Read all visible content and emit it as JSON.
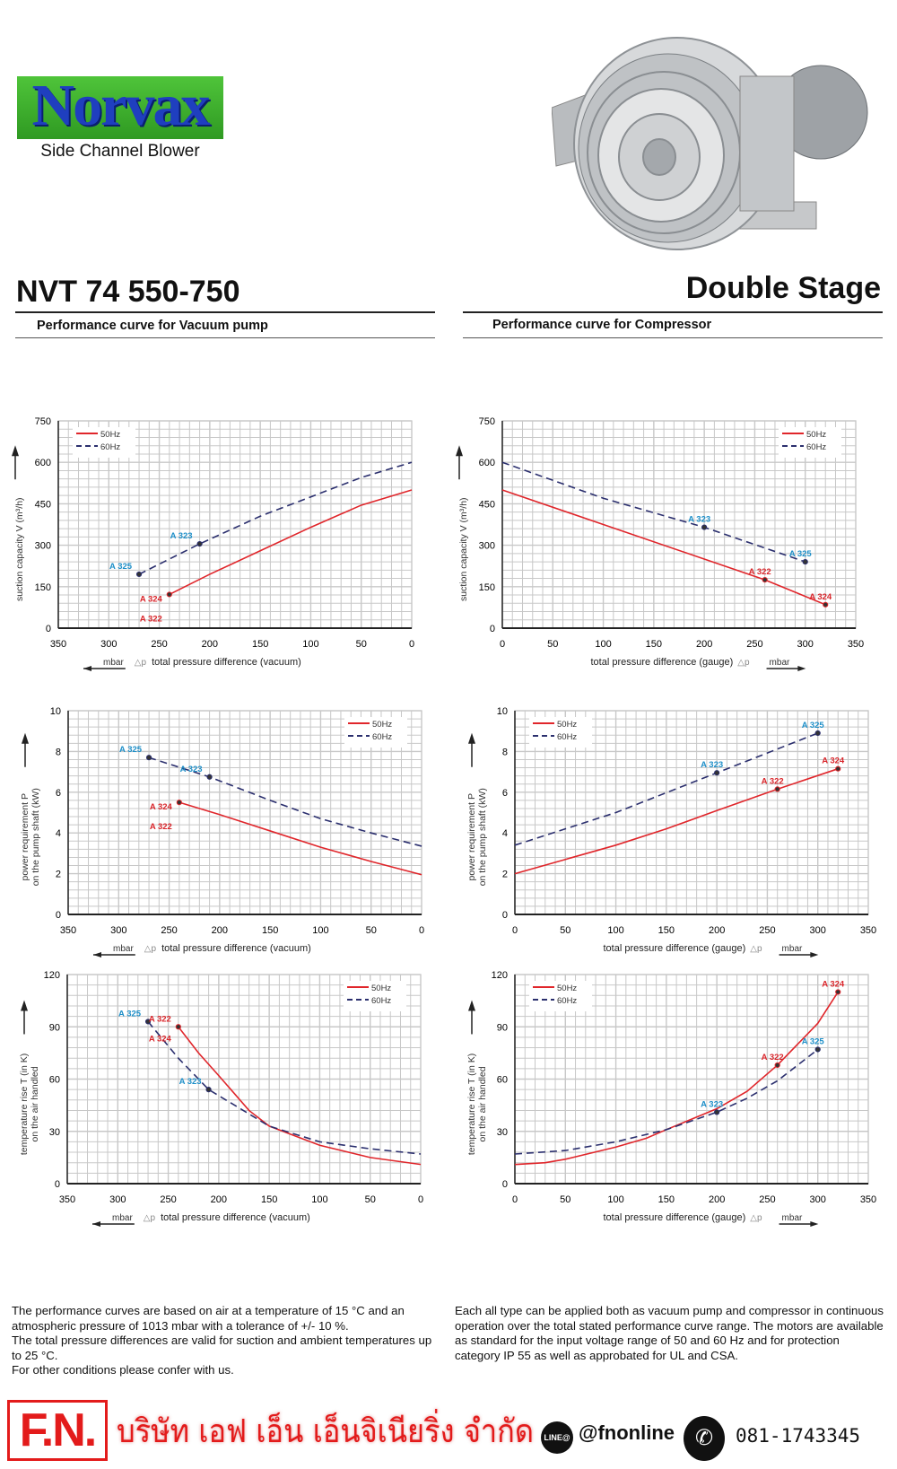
{
  "brand": {
    "logo_text": "Norvax",
    "subtitle": "Side Channel Blower"
  },
  "header": {
    "model": "NVT 74 550-750",
    "stage": "Double Stage",
    "left_subtitle": "Performance curve for Vacuum pump",
    "right_subtitle": "Performance curve for Compressor"
  },
  "colors": {
    "50Hz": "#e0262b",
    "60Hz": "#2b2f6e",
    "label_50": "#d9262b",
    "label_60": "#1e8fc8",
    "grid": "#c8c8c8"
  },
  "chart_data": [
    {
      "type": "line",
      "ylabel": [
        "suction capacity V (m³/h)"
      ],
      "xlabel": "total pressure difference (vacuum)",
      "unit": "mbar",
      "delta": "△p",
      "xreversed": true,
      "xlim": [
        0,
        350
      ],
      "xticks": [
        350,
        300,
        250,
        200,
        150,
        100,
        50,
        0
      ],
      "ylim": [
        0,
        750
      ],
      "yticks": [
        0,
        150,
        300,
        450,
        600,
        750
      ],
      "legend": "top-left",
      "grid": true,
      "series": [
        {
          "name": "50Hz",
          "points": [
            [
              240,
              122
            ],
            [
              200,
              195
            ],
            [
              150,
              280
            ],
            [
              100,
              365
            ],
            [
              50,
              445
            ],
            [
              0,
              500
            ]
          ]
        },
        {
          "name": "60Hz",
          "points": [
            [
              270,
              195
            ],
            [
              210,
              305
            ],
            [
              150,
              405
            ],
            [
              100,
              475
            ],
            [
              50,
              545
            ],
            [
              0,
              600
            ]
          ]
        }
      ],
      "markers": [
        {
          "label": "A 325",
          "series": "60Hz",
          "x": 270,
          "y": 195
        },
        {
          "label": "A 323",
          "series": "60Hz",
          "x": 210,
          "y": 305
        },
        {
          "label": "A 324",
          "series": "50Hz",
          "x": 240,
          "y": 122
        },
        {
          "label": "A 322",
          "series": "50Hz",
          "x": 240,
          "y": 122
        }
      ]
    },
    {
      "type": "line",
      "ylabel": [
        "suction capacity V (m³/h)"
      ],
      "xlabel": "total pressure difference (gauge)",
      "unit": "mbar",
      "delta": "△p",
      "xreversed": false,
      "xlim": [
        0,
        350
      ],
      "xticks": [
        0,
        50,
        100,
        150,
        200,
        250,
        300,
        350
      ],
      "ylim": [
        0,
        750
      ],
      "yticks": [
        0,
        150,
        300,
        450,
        600,
        750
      ],
      "legend": "top-right",
      "grid": true,
      "series": [
        {
          "name": "50Hz",
          "points": [
            [
              0,
              500
            ],
            [
              100,
              375
            ],
            [
              200,
              250
            ],
            [
              260,
              175
            ],
            [
              320,
              85
            ]
          ]
        },
        {
          "name": "60Hz",
          "points": [
            [
              0,
              600
            ],
            [
              100,
              470
            ],
            [
              200,
              365
            ],
            [
              300,
              240
            ]
          ]
        }
      ],
      "markers": [
        {
          "label": "A 323",
          "series": "60Hz",
          "x": 200,
          "y": 365
        },
        {
          "label": "A 325",
          "series": "60Hz",
          "x": 300,
          "y": 240
        },
        {
          "label": "A 322",
          "series": "50Hz",
          "x": 260,
          "y": 175
        },
        {
          "label": "A 324",
          "series": "50Hz",
          "x": 320,
          "y": 85
        }
      ]
    },
    {
      "type": "line",
      "ylabel": [
        "power requirement P",
        "on the pump shaft (kW)"
      ],
      "xlabel": "total pressure difference (vacuum)",
      "unit": "mbar",
      "delta": "△p",
      "xreversed": true,
      "xlim": [
        0,
        350
      ],
      "xticks": [
        350,
        300,
        250,
        200,
        150,
        100,
        50,
        0
      ],
      "ylim": [
        0,
        10
      ],
      "yticks": [
        0,
        2,
        4,
        6,
        8,
        10
      ],
      "legend": "top-right",
      "grid": true,
      "series": [
        {
          "name": "50Hz",
          "points": [
            [
              240,
              5.5
            ],
            [
              200,
              4.9
            ],
            [
              150,
              4.1
            ],
            [
              100,
              3.3
            ],
            [
              50,
              2.6
            ],
            [
              0,
              1.95
            ]
          ]
        },
        {
          "name": "60Hz",
          "points": [
            [
              270,
              7.7
            ],
            [
              210,
              6.75
            ],
            [
              150,
              5.6
            ],
            [
              100,
              4.7
            ],
            [
              50,
              4.0
            ],
            [
              0,
              3.35
            ]
          ]
        }
      ],
      "markers": [
        {
          "label": "A 325",
          "series": "60Hz",
          "x": 270,
          "y": 7.7
        },
        {
          "label": "A 323",
          "series": "60Hz",
          "x": 210,
          "y": 6.75
        },
        {
          "label": "A 324",
          "series": "50Hz",
          "x": 240,
          "y": 5.5
        },
        {
          "label": "A 322",
          "series": "50Hz",
          "x": 240,
          "y": 5.5
        }
      ]
    },
    {
      "type": "line",
      "ylabel": [
        "power requirement P",
        "on the pump shaft (kW)"
      ],
      "xlabel": "total pressure difference (gauge)",
      "unit": "mbar",
      "delta": "△p",
      "xreversed": false,
      "xlim": [
        0,
        350
      ],
      "xticks": [
        0,
        50,
        100,
        150,
        200,
        250,
        300,
        350
      ],
      "ylim": [
        0,
        10
      ],
      "yticks": [
        0,
        2,
        4,
        6,
        8,
        10
      ],
      "legend": "top-left",
      "grid": true,
      "series": [
        {
          "name": "50Hz",
          "points": [
            [
              0,
              2
            ],
            [
              50,
              2.7
            ],
            [
              100,
              3.4
            ],
            [
              150,
              4.2
            ],
            [
              200,
              5.1
            ],
            [
              260,
              6.15
            ],
            [
              320,
              7.15
            ]
          ]
        },
        {
          "name": "60Hz",
          "points": [
            [
              0,
              3.4
            ],
            [
              100,
              5.0
            ],
            [
              200,
              6.95
            ],
            [
              300,
              8.9
            ]
          ]
        }
      ],
      "markers": [
        {
          "label": "A 323",
          "series": "60Hz",
          "x": 200,
          "y": 6.95
        },
        {
          "label": "A 325",
          "series": "60Hz",
          "x": 300,
          "y": 8.9
        },
        {
          "label": "A 322",
          "series": "50Hz",
          "x": 260,
          "y": 6.15
        },
        {
          "label": "A 324",
          "series": "50Hz",
          "x": 320,
          "y": 7.15
        }
      ]
    },
    {
      "type": "line",
      "ylabel": [
        "temperature rise T (in K)",
        "on the air handled"
      ],
      "xlabel": "total pressure difference (vacuum)",
      "unit": "mbar",
      "delta": "△p",
      "xreversed": true,
      "xlim": [
        0,
        350
      ],
      "xticks": [
        350,
        300,
        250,
        200,
        150,
        100,
        50,
        0
      ],
      "ylim": [
        0,
        120
      ],
      "yticks": [
        0,
        30,
        60,
        90,
        120
      ],
      "legend": "top-right",
      "grid": true,
      "series": [
        {
          "name": "50Hz",
          "points": [
            [
              240,
              90
            ],
            [
              220,
              75
            ],
            [
              200,
              62
            ],
            [
              170,
              42
            ],
            [
              150,
              33
            ],
            [
              100,
              22
            ],
            [
              50,
              15
            ],
            [
              0,
              11
            ]
          ]
        },
        {
          "name": "60Hz",
          "points": [
            [
              270,
              93
            ],
            [
              240,
              72
            ],
            [
              210,
              54
            ],
            [
              170,
              40
            ],
            [
              150,
              33
            ],
            [
              100,
              24
            ],
            [
              50,
              20
            ],
            [
              0,
              17
            ]
          ]
        }
      ],
      "markers": [
        {
          "label": "A 325",
          "series": "60Hz",
          "x": 270,
          "y": 93
        },
        {
          "label": "A 323",
          "series": "60Hz",
          "x": 210,
          "y": 54
        },
        {
          "label": "A 322",
          "series": "50Hz",
          "x": 240,
          "y": 90
        },
        {
          "label": "A 324",
          "series": "50Hz",
          "x": 240,
          "y": 90
        }
      ]
    },
    {
      "type": "line",
      "ylabel": [
        "temperature rise T (in K)",
        "on the air handled"
      ],
      "xlabel": "total pressure difference (gauge)",
      "unit": "mbar",
      "delta": "△p",
      "xreversed": false,
      "xlim": [
        0,
        350
      ],
      "xticks": [
        0,
        50,
        100,
        150,
        200,
        250,
        300,
        350
      ],
      "ylim": [
        0,
        120
      ],
      "yticks": [
        0,
        30,
        60,
        90,
        120
      ],
      "legend": "top-left",
      "grid": true,
      "series": [
        {
          "name": "50Hz",
          "points": [
            [
              0,
              11
            ],
            [
              30,
              12
            ],
            [
              50,
              14
            ],
            [
              100,
              21
            ],
            [
              130,
              26
            ],
            [
              150,
              31
            ],
            [
              200,
              43
            ],
            [
              230,
              53
            ],
            [
              260,
              68
            ],
            [
              300,
              92
            ],
            [
              320,
              110
            ]
          ]
        },
        {
          "name": "60Hz",
          "points": [
            [
              0,
              17
            ],
            [
              50,
              19
            ],
            [
              100,
              24
            ],
            [
              150,
              31
            ],
            [
              200,
              41
            ],
            [
              230,
              49
            ],
            [
              260,
              59
            ],
            [
              300,
              77
            ]
          ]
        }
      ],
      "markers": [
        {
          "label": "A 324",
          "series": "50Hz",
          "x": 320,
          "y": 110
        },
        {
          "label": "A 322",
          "series": "50Hz",
          "x": 260,
          "y": 68
        },
        {
          "label": "A 325",
          "series": "60Hz",
          "x": 300,
          "y": 77
        },
        {
          "label": "A 323",
          "series": "60Hz",
          "x": 200,
          "y": 41
        }
      ]
    }
  ],
  "notes": {
    "left": [
      "The performance curves are based on air at a temperature of 15 °C and an atmospheric pressure of 1013 mbar with a tolerance of +/- 10 %.",
      "The total pressure differences are valid for suction and ambient temperatures up to 25 °C.",
      "For other conditions please confer with us."
    ],
    "right": "Each all  type can be applied both as vacuum pump and compressor in continuous operation over the total stated performance curve range. The motors are available as standard for the input voltage range of 50 and 60 Hz and for protection category IP 55 as well as approbated for UL and CSA."
  },
  "footer": {
    "logo": "F.N.",
    "company": "บริษัท เอฟ เอ็น เอ็นจิเนียริ่ง จำกัด",
    "line_badge": "LINE@",
    "line_id": "@fnonline",
    "phone": "081-1743345"
  }
}
